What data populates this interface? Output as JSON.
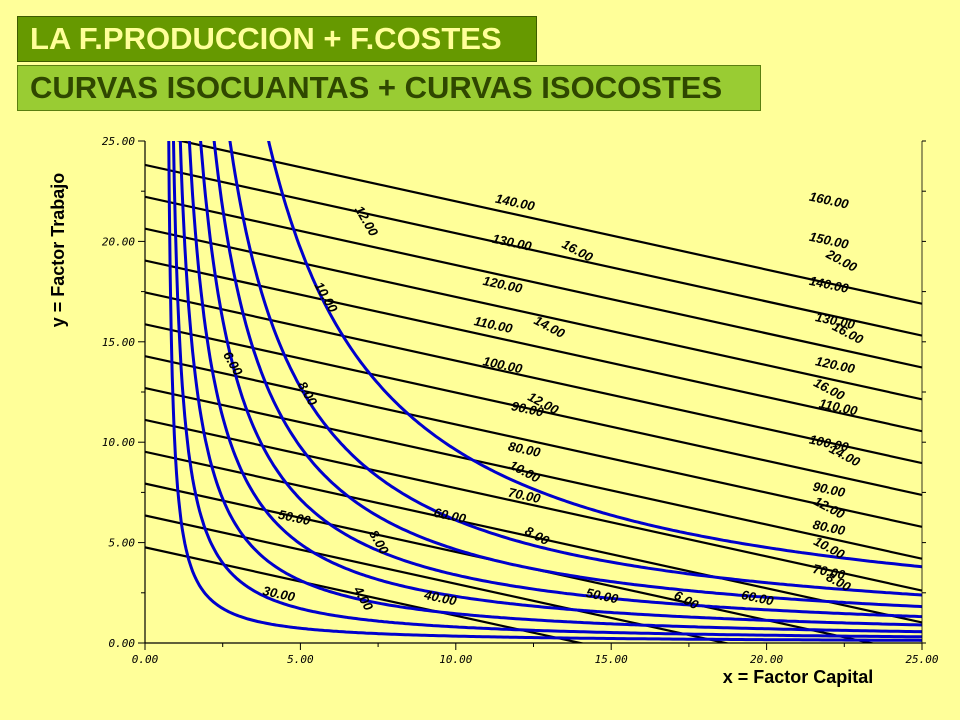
{
  "header": {
    "title": "LA F.PRODUCCION + F.COSTES",
    "subtitle": "CURVAS ISOCUANTAS + CURVAS ISOCOSTES"
  },
  "colors": {
    "background": "#FFFF99",
    "title_bg": "#669900",
    "subtitle_bg": "#99CC33",
    "isoquant": "#0000CC",
    "isocost": "#000000"
  },
  "chart_data": {
    "type": "line",
    "title": "",
    "xlabel": "x = Factor Capital",
    "ylabel": "y = Factor Trabajo",
    "xlim": [
      0,
      25
    ],
    "ylim": [
      0,
      25
    ],
    "x_ticks": [
      "0.00",
      "5.00",
      "10.00",
      "15.00",
      "20.00",
      "25.00"
    ],
    "y_ticks": [
      "0.00",
      "5.00",
      "10.00",
      "15.00",
      "20.00",
      "25.00"
    ],
    "grid": false,
    "isoquant_levels": [
      4,
      6,
      8,
      10,
      12,
      14,
      16,
      20
    ],
    "isoquant_labels": [
      {
        "text": "4.00",
        "x": 7.0,
        "y": 2.2
      },
      {
        "text": "6.00",
        "x": 2.8,
        "y": 13.9
      },
      {
        "text": "6.00",
        "x": 17.4,
        "y": 2.1
      },
      {
        "text": "8.00",
        "x": 5.2,
        "y": 12.4
      },
      {
        "text": "8.00",
        "x": 7.5,
        "y": 5.0
      },
      {
        "text": "8.00",
        "x": 12.6,
        "y": 5.3
      },
      {
        "text": "8.00",
        "x": 22.3,
        "y": 3.0
      },
      {
        "text": "10.00",
        "x": 5.8,
        "y": 17.2
      },
      {
        "text": "10.00",
        "x": 12.2,
        "y": 8.5
      },
      {
        "text": "10.00",
        "x": 22.0,
        "y": 4.7
      },
      {
        "text": "12.00",
        "x": 7.1,
        "y": 21.0
      },
      {
        "text": "12.00",
        "x": 12.8,
        "y": 11.9
      },
      {
        "text": "12.00",
        "x": 22.0,
        "y": 6.7
      },
      {
        "text": "14.00",
        "x": 13.0,
        "y": 15.7
      },
      {
        "text": "14.00",
        "x": 22.5,
        "y": 9.3
      },
      {
        "text": "16.00",
        "x": 13.9,
        "y": 19.5
      },
      {
        "text": "16.00",
        "x": 22.0,
        "y": 12.6
      },
      {
        "text": "16.00",
        "x": 22.6,
        "y": 15.4
      },
      {
        "text": "20.00",
        "x": 22.4,
        "y": 19.0
      }
    ],
    "isocost_levels": [
      30,
      40,
      50,
      60,
      70,
      80,
      90,
      100,
      110,
      120,
      130,
      140,
      150,
      160
    ],
    "isocost_labels": [
      {
        "text": "30.00",
        "x": 4.3,
        "y": 2.4
      },
      {
        "text": "40.00",
        "x": 9.5,
        "y": 2.2
      },
      {
        "text": "50.00",
        "x": 4.8,
        "y": 6.2
      },
      {
        "text": "50.00",
        "x": 14.7,
        "y": 2.3
      },
      {
        "text": "60.00",
        "x": 9.8,
        "y": 6.3
      },
      {
        "text": "60.00",
        "x": 19.7,
        "y": 2.2
      },
      {
        "text": "70.00",
        "x": 12.2,
        "y": 7.3
      },
      {
        "text": "70.00",
        "x": 22.0,
        "y": 3.5
      },
      {
        "text": "80.00",
        "x": 12.2,
        "y": 9.6
      },
      {
        "text": "80.00",
        "x": 22.0,
        "y": 5.7
      },
      {
        "text": "90.00",
        "x": 12.3,
        "y": 11.6
      },
      {
        "text": "90.00",
        "x": 22.0,
        "y": 7.6
      },
      {
        "text": "100.00",
        "x": 11.5,
        "y": 13.8
      },
      {
        "text": "100.00",
        "x": 22.0,
        "y": 9.9
      },
      {
        "text": "110.00",
        "x": 11.2,
        "y": 15.8
      },
      {
        "text": "110.00",
        "x": 22.3,
        "y": 11.7
      },
      {
        "text": "120.00",
        "x": 11.5,
        "y": 17.8
      },
      {
        "text": "120.00",
        "x": 22.2,
        "y": 13.8
      },
      {
        "text": "130.00",
        "x": 11.8,
        "y": 19.9
      },
      {
        "text": "130.00",
        "x": 22.2,
        "y": 16.0
      },
      {
        "text": "140.00",
        "x": 11.9,
        "y": 21.9
      },
      {
        "text": "140.00",
        "x": 22.0,
        "y": 17.8
      },
      {
        "text": "150.00",
        "x": 22.0,
        "y": 20.0
      },
      {
        "text": "160.00",
        "x": 22.0,
        "y": 22.0
      }
    ]
  }
}
